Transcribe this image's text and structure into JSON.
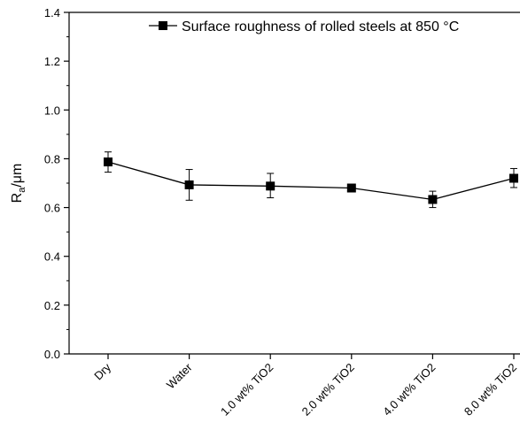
{
  "chart_data": {
    "type": "line",
    "title": "",
    "xlabel": "",
    "ylabel": {
      "main": "R",
      "sub": "a",
      "unit": "/μm"
    },
    "ylim": [
      0.0,
      1.4
    ],
    "yticks": [
      "0.0",
      "0.2",
      "0.4",
      "0.6",
      "0.8",
      "1.0",
      "1.2",
      "1.4"
    ],
    "categories": [
      "Dry",
      "Water",
      "1.0 wt% TiO2",
      "2.0 wt% TiO2",
      "4.0 wt% TiO2",
      "8.0 wt% TiO2"
    ],
    "series": [
      {
        "name": "Surface roughness of rolled steels at 850 °C",
        "values": [
          0.787,
          0.693,
          0.688,
          0.68,
          0.633,
          0.72
        ],
        "err_low": [
          0.745,
          0.63,
          0.64,
          0.676,
          0.6,
          0.682
        ],
        "err_high": [
          0.828,
          0.756,
          0.74,
          0.684,
          0.667,
          0.76
        ],
        "color": "#000000",
        "marker": "square"
      }
    ],
    "legend_position": "top-right",
    "grid": false
  }
}
